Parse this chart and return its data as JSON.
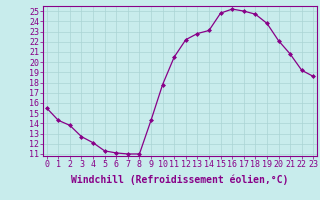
{
  "x": [
    0,
    1,
    2,
    3,
    4,
    5,
    6,
    7,
    8,
    9,
    10,
    11,
    12,
    13,
    14,
    15,
    16,
    17,
    18,
    19,
    20,
    21,
    22,
    23
  ],
  "y": [
    15.5,
    14.3,
    13.8,
    12.7,
    12.1,
    11.3,
    11.1,
    11.0,
    11.0,
    14.3,
    17.8,
    20.5,
    22.2,
    22.8,
    23.1,
    24.8,
    25.2,
    25.0,
    24.7,
    23.8,
    22.1,
    20.8,
    19.2,
    18.6
  ],
  "xlabel": "Windchill (Refroidissement éolien,°C)",
  "ylim": [
    11,
    25
  ],
  "xlim": [
    0,
    23
  ],
  "yticks": [
    11,
    12,
    13,
    14,
    15,
    16,
    17,
    18,
    19,
    20,
    21,
    22,
    23,
    24,
    25
  ],
  "xticks": [
    0,
    1,
    2,
    3,
    4,
    5,
    6,
    7,
    8,
    9,
    10,
    11,
    12,
    13,
    14,
    15,
    16,
    17,
    18,
    19,
    20,
    21,
    22,
    23
  ],
  "line_color": "#880088",
  "marker_color": "#880088",
  "bg_color": "#c8ecec",
  "grid_color": "#aad4d4",
  "xlabel_fontsize": 7,
  "tick_fontsize": 6,
  "marker": "D",
  "marker_size": 2.0,
  "linewidth": 0.9
}
